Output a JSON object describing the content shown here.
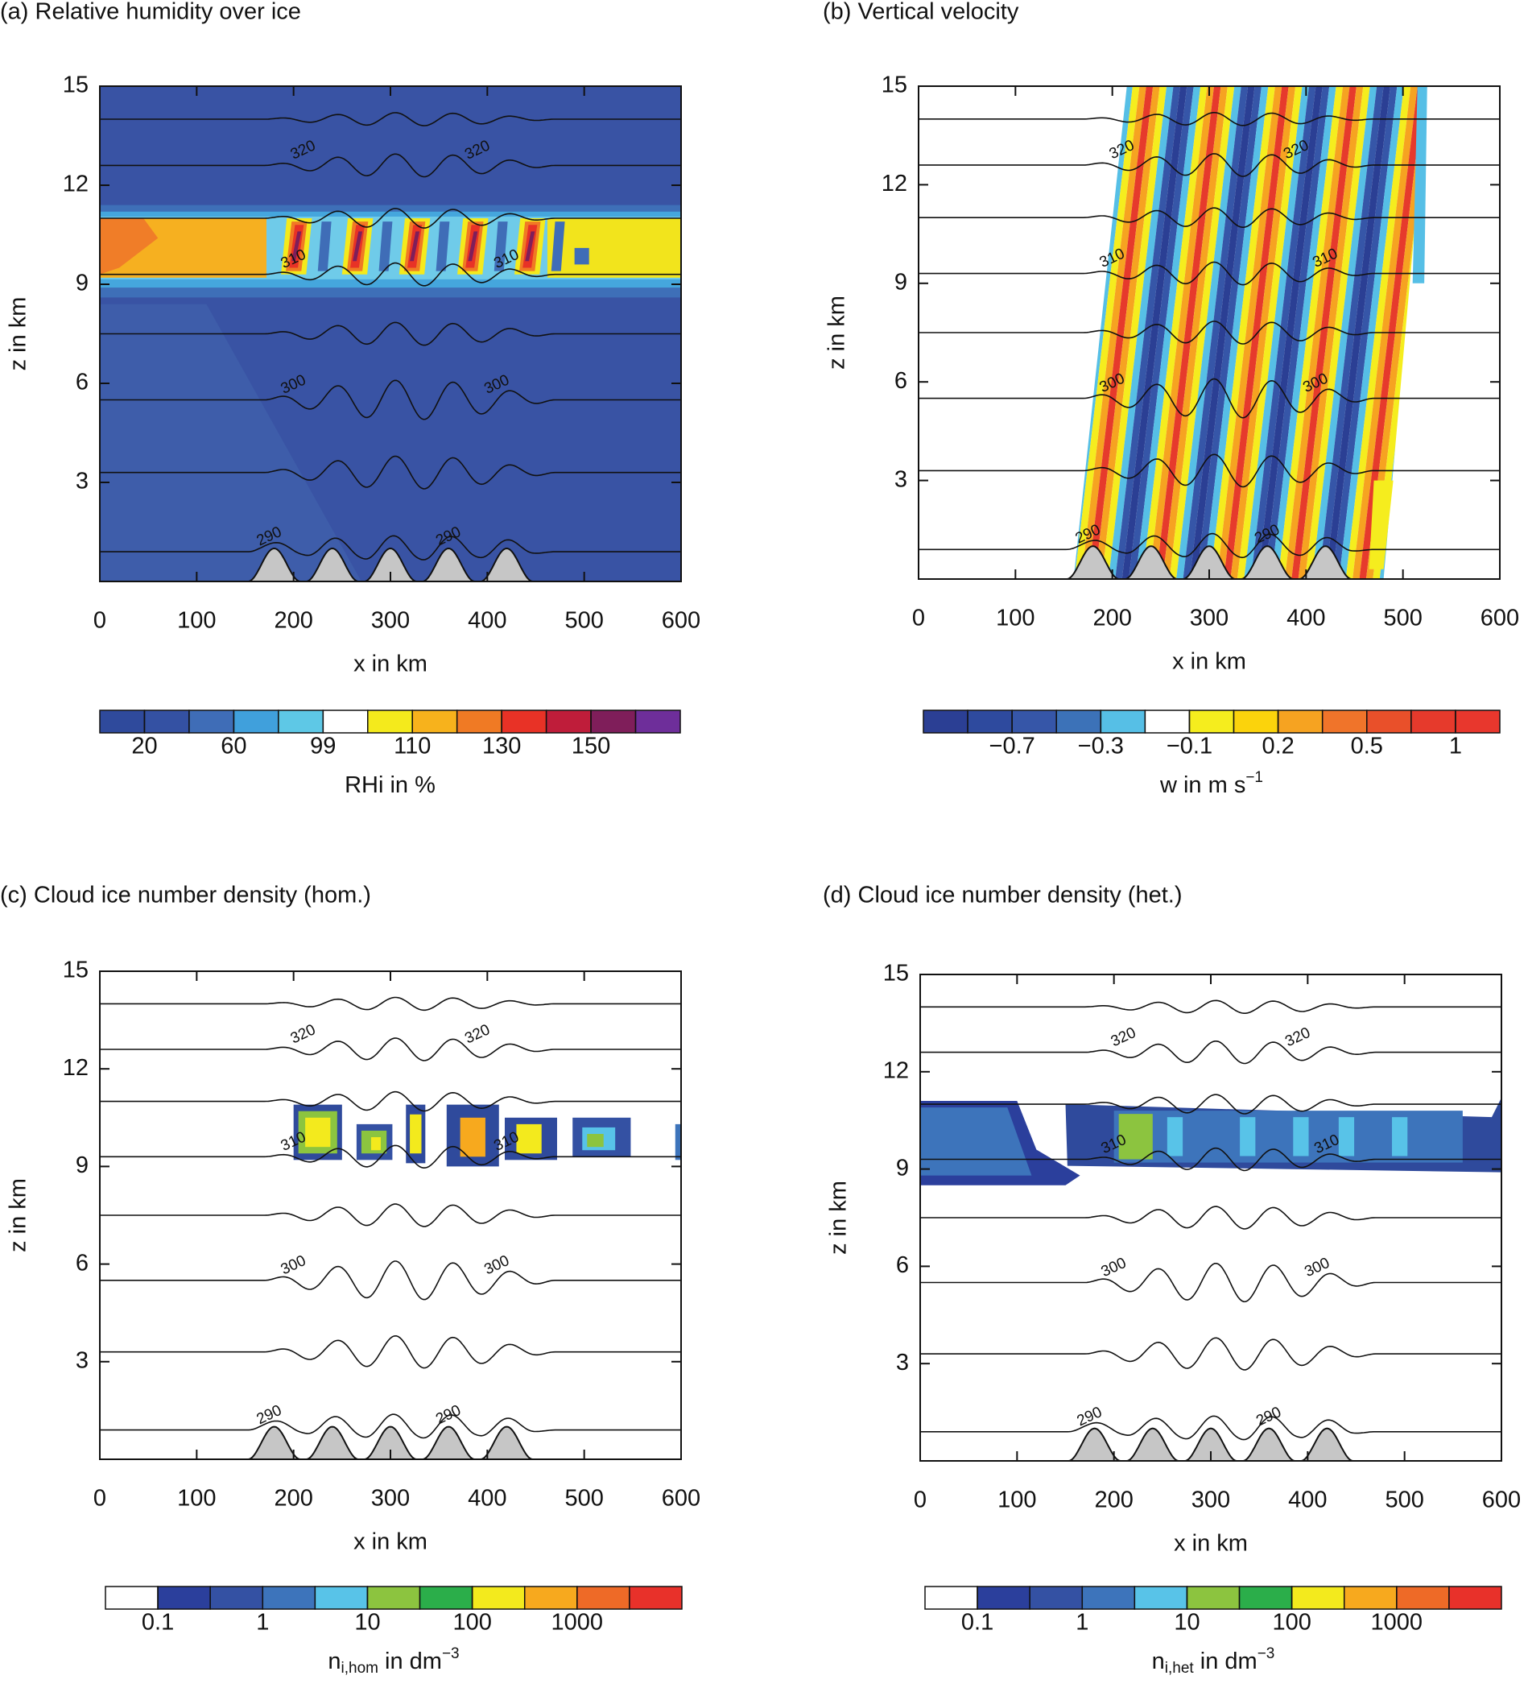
{
  "chart_data": [
    {
      "type": "contour",
      "title": "(a) Relative humidity over ice",
      "xlabel": "x in km",
      "ylabel": "z in km",
      "xlim": [
        0,
        600
      ],
      "ylim": [
        0,
        15
      ],
      "xticks": [
        0,
        100,
        200,
        300,
        400,
        500,
        600
      ],
      "yticks": [
        3,
        6,
        9,
        12,
        15
      ],
      "isentrope_labels": [
        290,
        300,
        310,
        320
      ],
      "colorbar": {
        "label": [
          {
            "t": "RHi in %"
          }
        ],
        "colors": [
          "#2f4a9c",
          "#3451a3",
          "#3f6db7",
          "#40a0dc",
          "#5ec8e6",
          "#ffffff",
          "#f4ea1c",
          "#f7b21c",
          "#f07a24",
          "#e83226",
          "#bf1d3a",
          "#7f1e5a",
          "#6e2e9a"
        ],
        "levels": [
          20,
          null,
          60,
          null,
          99,
          null,
          110,
          null,
          130,
          null,
          150,
          null
        ]
      }
    },
    {
      "type": "contour",
      "title": "(b) Vertical velocity",
      "xlabel": "x in km",
      "ylabel": "z in km",
      "xlim": [
        0,
        600
      ],
      "ylim": [
        0,
        15
      ],
      "xticks": [
        0,
        100,
        200,
        300,
        400,
        500,
        600
      ],
      "yticks": [
        3,
        6,
        9,
        12,
        15
      ],
      "isentrope_labels": [
        290,
        300,
        310,
        320
      ],
      "colorbar": {
        "label": [
          {
            "t": "w in m s"
          },
          {
            "sup": "−1"
          }
        ],
        "colors": [
          "#2b3f94",
          "#2e4a9e",
          "#3656a8",
          "#3c72b8",
          "#56bfe6",
          "#ffffff",
          "#f5ed1e",
          "#fbd30c",
          "#f6a321",
          "#f0742a",
          "#e9502a",
          "#e63a2c",
          "#e8372d"
        ],
        "levels": [
          null,
          {
            "value": -0.7,
            "label": "−0.7"
          },
          null,
          {
            "value": -0.3,
            "label": "−0.3"
          },
          null,
          {
            "value": -0.1,
            "label": "−0.1"
          },
          null,
          0.2,
          null,
          0.5,
          null,
          1
        ]
      }
    },
    {
      "type": "contour",
      "title": "(c) Cloud ice number density (hom.)",
      "xlabel": "x in km",
      "ylabel": "z in km",
      "xlim": [
        0,
        600
      ],
      "ylim": [
        0,
        15
      ],
      "xticks": [
        0,
        100,
        200,
        300,
        400,
        500,
        600
      ],
      "yticks": [
        3,
        6,
        9,
        12,
        15
      ],
      "isentrope_labels": [
        290,
        300,
        310,
        320
      ],
      "colorbar": {
        "label": [
          {
            "t": "n"
          },
          {
            "sub": "i,hom"
          },
          {
            "t": " in dm"
          },
          {
            "sup": "−3"
          }
        ],
        "colors": [
          "#ffffff",
          "#2b3f9c",
          "#3451a3",
          "#3d74bb",
          "#58c3e8",
          "#8cc43f",
          "#2bae4a",
          "#f3ea1d",
          "#f7a91e",
          "#ee6a27",
          "#e8312a"
        ],
        "levels": [
          0.1,
          null,
          1,
          null,
          10,
          null,
          100,
          null,
          1000,
          null
        ]
      }
    },
    {
      "type": "contour",
      "title": "(d) Cloud ice number density (het.)",
      "xlabel": "x in km",
      "ylabel": "z in km",
      "xlim": [
        0,
        600
      ],
      "ylim": [
        0,
        15
      ],
      "xticks": [
        0,
        100,
        200,
        300,
        400,
        500,
        600
      ],
      "yticks": [
        3,
        6,
        9,
        12,
        15
      ],
      "isentrope_labels": [
        290,
        300,
        310,
        320
      ],
      "colorbar": {
        "label": [
          {
            "t": "n"
          },
          {
            "sub": "i,het"
          },
          {
            "t": " in dm"
          },
          {
            "sup": "−3"
          }
        ],
        "colors": [
          "#ffffff",
          "#2b3f9c",
          "#3451a3",
          "#3d74bb",
          "#58c3e8",
          "#8cc43f",
          "#2bae4a",
          "#f3ea1d",
          "#f7a91e",
          "#ee6a27",
          "#e8312a"
        ],
        "levels": [
          0.1,
          null,
          1,
          null,
          10,
          null,
          100,
          null,
          1000,
          null
        ]
      }
    }
  ]
}
